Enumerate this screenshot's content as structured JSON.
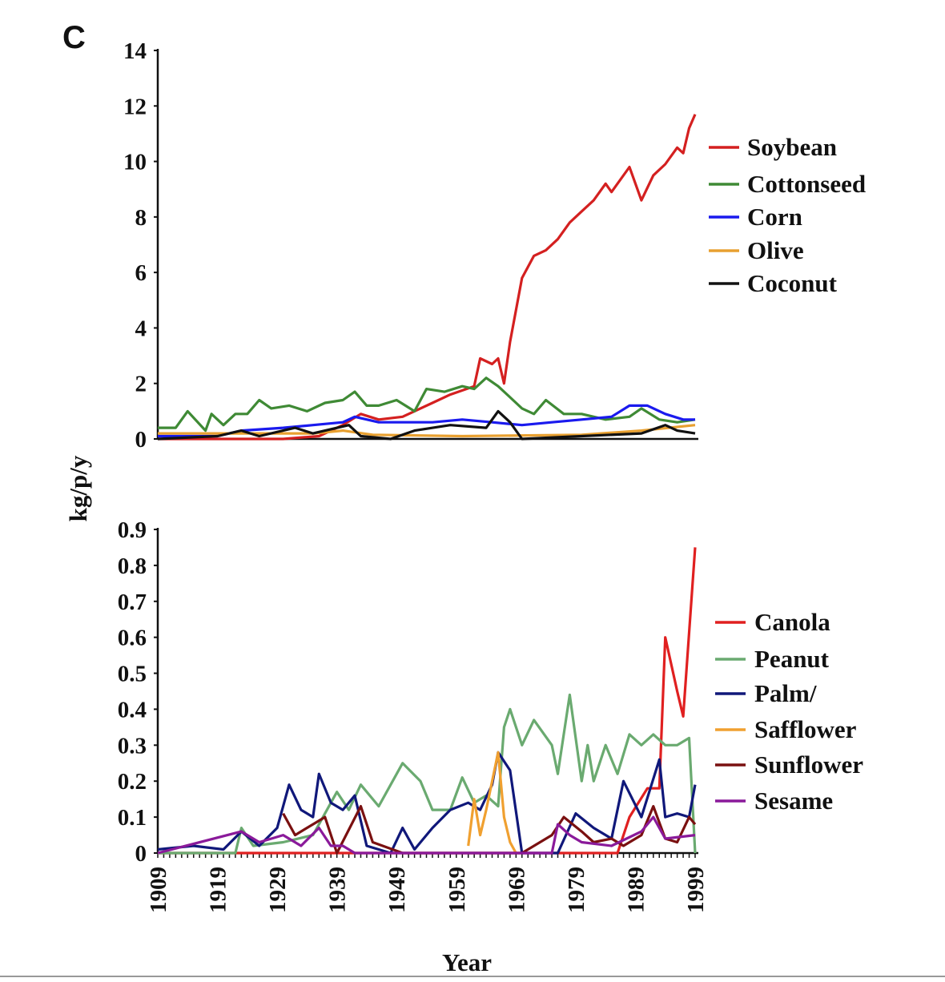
{
  "panel_label": "C",
  "chart_data": [
    {
      "type": "line",
      "title": "",
      "xlabel": "",
      "ylabel": "kg/p/y",
      "xlim": [
        1909,
        1999
      ],
      "ylim": [
        0,
        14
      ],
      "yticks": [
        "0",
        "2",
        "4",
        "6",
        "8",
        "10",
        "12",
        "14"
      ],
      "legend_position": "right",
      "series": [
        {
          "name": "Soybean",
          "color": "#d42020",
          "points": [
            [
              1909,
              0
            ],
            [
              1930,
              0
            ],
            [
              1936,
              0.1
            ],
            [
              1940,
              0.5
            ],
            [
              1943,
              0.9
            ],
            [
              1946,
              0.7
            ],
            [
              1950,
              0.8
            ],
            [
              1955,
              1.3
            ],
            [
              1958,
              1.6
            ],
            [
              1962,
              1.9
            ],
            [
              1963,
              2.9
            ],
            [
              1965,
              2.7
            ],
            [
              1966,
              2.9
            ],
            [
              1967,
              2.0
            ],
            [
              1968,
              3.5
            ],
            [
              1970,
              5.8
            ],
            [
              1972,
              6.6
            ],
            [
              1974,
              6.8
            ],
            [
              1976,
              7.2
            ],
            [
              1978,
              7.8
            ],
            [
              1980,
              8.2
            ],
            [
              1982,
              8.6
            ],
            [
              1984,
              9.2
            ],
            [
              1985,
              8.9
            ],
            [
              1988,
              9.8
            ],
            [
              1990,
              8.6
            ],
            [
              1992,
              9.5
            ],
            [
              1994,
              9.9
            ],
            [
              1996,
              10.5
            ],
            [
              1997,
              10.3
            ],
            [
              1998,
              11.2
            ],
            [
              1999,
              11.7
            ]
          ]
        },
        {
          "name": "Cottonseed",
          "color": "#3f8a35",
          "points": [
            [
              1909,
              0.4
            ],
            [
              1912,
              0.4
            ],
            [
              1914,
              1.0
            ],
            [
              1917,
              0.3
            ],
            [
              1918,
              0.9
            ],
            [
              1920,
              0.5
            ],
            [
              1922,
              0.9
            ],
            [
              1924,
              0.9
            ],
            [
              1926,
              1.4
            ],
            [
              1928,
              1.1
            ],
            [
              1931,
              1.2
            ],
            [
              1934,
              1.0
            ],
            [
              1937,
              1.3
            ],
            [
              1940,
              1.4
            ],
            [
              1942,
              1.7
            ],
            [
              1944,
              1.2
            ],
            [
              1946,
              1.2
            ],
            [
              1949,
              1.4
            ],
            [
              1952,
              1.0
            ],
            [
              1954,
              1.8
            ],
            [
              1957,
              1.7
            ],
            [
              1960,
              1.9
            ],
            [
              1962,
              1.8
            ],
            [
              1964,
              2.2
            ],
            [
              1966,
              1.9
            ],
            [
              1968,
              1.5
            ],
            [
              1970,
              1.1
            ],
            [
              1972,
              0.9
            ],
            [
              1974,
              1.4
            ],
            [
              1977,
              0.9
            ],
            [
              1980,
              0.9
            ],
            [
              1984,
              0.7
            ],
            [
              1988,
              0.8
            ],
            [
              1990,
              1.1
            ],
            [
              1993,
              0.7
            ],
            [
              1996,
              0.6
            ],
            [
              1999,
              0.7
            ]
          ]
        },
        {
          "name": "Corn",
          "color": "#1a1aee",
          "points": [
            [
              1909,
              0.1
            ],
            [
              1919,
              0.1
            ],
            [
              1923,
              0.3
            ],
            [
              1930,
              0.4
            ],
            [
              1935,
              0.5
            ],
            [
              1940,
              0.6
            ],
            [
              1942,
              0.8
            ],
            [
              1946,
              0.6
            ],
            [
              1950,
              0.6
            ],
            [
              1955,
              0.6
            ],
            [
              1960,
              0.7
            ],
            [
              1965,
              0.6
            ],
            [
              1970,
              0.5
            ],
            [
              1975,
              0.6
            ],
            [
              1980,
              0.7
            ],
            [
              1985,
              0.8
            ],
            [
              1988,
              1.2
            ],
            [
              1991,
              1.2
            ],
            [
              1994,
              0.9
            ],
            [
              1997,
              0.7
            ],
            [
              1999,
              0.7
            ]
          ]
        },
        {
          "name": "Olive",
          "color": "#e8a030",
          "points": [
            [
              1909,
              0.2
            ],
            [
              1920,
              0.2
            ],
            [
              1935,
              0.2
            ],
            [
              1940,
              0.3
            ],
            [
              1945,
              0.15
            ],
            [
              1960,
              0.1
            ],
            [
              1980,
              0.15
            ],
            [
              1990,
              0.3
            ],
            [
              1999,
              0.5
            ]
          ]
        },
        {
          "name": "Coconut",
          "color": "#111111",
          "points": [
            [
              1909,
              0
            ],
            [
              1919,
              0.1
            ],
            [
              1923,
              0.3
            ],
            [
              1926,
              0.1
            ],
            [
              1932,
              0.4
            ],
            [
              1935,
              0.2
            ],
            [
              1941,
              0.5
            ],
            [
              1943,
              0.1
            ],
            [
              1948,
              0.0
            ],
            [
              1952,
              0.3
            ],
            [
              1958,
              0.5
            ],
            [
              1964,
              0.4
            ],
            [
              1966,
              1.0
            ],
            [
              1968,
              0.6
            ],
            [
              1970,
              0
            ],
            [
              1980,
              0.1
            ],
            [
              1990,
              0.2
            ],
            [
              1994,
              0.5
            ],
            [
              1996,
              0.3
            ],
            [
              1999,
              0.2
            ]
          ]
        }
      ]
    },
    {
      "type": "line",
      "title": "",
      "xlabel": "Year",
      "ylabel": "kg/p/y",
      "xlim": [
        1909,
        1999
      ],
      "ylim": [
        0,
        0.9
      ],
      "yticks": [
        "0",
        "0.1",
        "0.2",
        "0.3",
        "0.4",
        "0.5",
        "0.6",
        "0.7",
        "0.8",
        "0.9"
      ],
      "xticks": [
        "1909",
        "1919",
        "1929",
        "1939",
        "1949",
        "1959",
        "1969",
        "1979",
        "1989",
        "1999"
      ],
      "legend_position": "right",
      "series": [
        {
          "name": "Canola",
          "color": "#e02020",
          "points": [
            [
              1909,
              0
            ],
            [
              1986,
              0
            ],
            [
              1988,
              0.1
            ],
            [
              1991,
              0.18
            ],
            [
              1993,
              0.18
            ],
            [
              1994,
              0.6
            ],
            [
              1996,
              0.45
            ],
            [
              1997,
              0.38
            ],
            [
              1999,
              0.85
            ]
          ]
        },
        {
          "name": "Peanut",
          "color": "#6aaa70",
          "points": [
            [
              1909,
              0
            ],
            [
              1922,
              0
            ],
            [
              1923,
              0.07
            ],
            [
              1925,
              0.02
            ],
            [
              1930,
              0.03
            ],
            [
              1935,
              0.05
            ],
            [
              1939,
              0.17
            ],
            [
              1941,
              0.12
            ],
            [
              1943,
              0.19
            ],
            [
              1946,
              0.13
            ],
            [
              1950,
              0.25
            ],
            [
              1953,
              0.2
            ],
            [
              1955,
              0.12
            ],
            [
              1958,
              0.12
            ],
            [
              1960,
              0.21
            ],
            [
              1962,
              0.14
            ],
            [
              1964,
              0.16
            ],
            [
              1966,
              0.13
            ],
            [
              1967,
              0.35
            ],
            [
              1968,
              0.4
            ],
            [
              1970,
              0.3
            ],
            [
              1972,
              0.37
            ],
            [
              1975,
              0.3
            ],
            [
              1976,
              0.22
            ],
            [
              1978,
              0.44
            ],
            [
              1980,
              0.2
            ],
            [
              1981,
              0.3
            ],
            [
              1982,
              0.2
            ],
            [
              1984,
              0.3
            ],
            [
              1986,
              0.22
            ],
            [
              1988,
              0.33
            ],
            [
              1990,
              0.3
            ],
            [
              1992,
              0.33
            ],
            [
              1994,
              0.3
            ],
            [
              1996,
              0.3
            ],
            [
              1998,
              0.32
            ],
            [
              1999,
              0
            ]
          ]
        },
        {
          "name": "Palm/",
          "color": "#10187a",
          "points": [
            [
              1909,
              0.01
            ],
            [
              1915,
              0.02
            ],
            [
              1920,
              0.01
            ],
            [
              1923,
              0.06
            ],
            [
              1926,
              0.02
            ],
            [
              1929,
              0.07
            ],
            [
              1931,
              0.19
            ],
            [
              1933,
              0.12
            ],
            [
              1935,
              0.1
            ],
            [
              1936,
              0.22
            ],
            [
              1938,
              0.14
            ],
            [
              1940,
              0.12
            ],
            [
              1942,
              0.16
            ],
            [
              1944,
              0.02
            ],
            [
              1946,
              0.01
            ],
            [
              1948,
              0.0
            ],
            [
              1950,
              0.07
            ],
            [
              1952,
              0.01
            ],
            [
              1955,
              0.07
            ],
            [
              1958,
              0.12
            ],
            [
              1961,
              0.14
            ],
            [
              1963,
              0.12
            ],
            [
              1965,
              0.19
            ],
            [
              1966,
              0.28
            ],
            [
              1968,
              0.23
            ],
            [
              1970,
              0.0
            ],
            [
              1976,
              0.0
            ],
            [
              1979,
              0.11
            ],
            [
              1982,
              0.07
            ],
            [
              1985,
              0.04
            ],
            [
              1987,
              0.2
            ],
            [
              1990,
              0.1
            ],
            [
              1993,
              0.26
            ],
            [
              1994,
              0.1
            ],
            [
              1996,
              0.11
            ],
            [
              1998,
              0.1
            ],
            [
              1999,
              0.19
            ]
          ]
        },
        {
          "name": "Safflower",
          "color": "#f0a030",
          "points": [
            [
              1961,
              0.02
            ],
            [
              1962,
              0.15
            ],
            [
              1963,
              0.05
            ],
            [
              1964,
              0.12
            ],
            [
              1966,
              0.28
            ],
            [
              1967,
              0.1
            ],
            [
              1968,
              0.03
            ],
            [
              1969,
              0.0
            ]
          ]
        },
        {
          "name": "Sunflower",
          "color": "#7a1010",
          "points": [
            [
              1930,
              0.11
            ],
            [
              1932,
              0.05
            ],
            [
              1935,
              0.08
            ],
            [
              1937,
              0.1
            ],
            [
              1939,
              0.0
            ],
            [
              1943,
              0.13
            ],
            [
              1945,
              0.03
            ],
            [
              1950,
              0
            ],
            [
              1970,
              0.0
            ],
            [
              1975,
              0.05
            ],
            [
              1977,
              0.1
            ],
            [
              1980,
              0.06
            ],
            [
              1982,
              0.03
            ],
            [
              1985,
              0.04
            ],
            [
              1987,
              0.02
            ],
            [
              1990,
              0.05
            ],
            [
              1992,
              0.13
            ],
            [
              1994,
              0.04
            ],
            [
              1996,
              0.03
            ],
            [
              1998,
              0.1
            ],
            [
              1999,
              0.08
            ]
          ]
        },
        {
          "name": "Sesame",
          "color": "#8a1a9a",
          "points": [
            [
              1909,
              0
            ],
            [
              1923,
              0.06
            ],
            [
              1926,
              0.03
            ],
            [
              1930,
              0.05
            ],
            [
              1933,
              0.02
            ],
            [
              1936,
              0.07
            ],
            [
              1938,
              0.02
            ],
            [
              1940,
              0.02
            ],
            [
              1942,
              0
            ],
            [
              1975,
              0
            ],
            [
              1976,
              0.08
            ],
            [
              1978,
              0.05
            ],
            [
              1980,
              0.03
            ],
            [
              1985,
              0.02
            ],
            [
              1990,
              0.06
            ],
            [
              1992,
              0.1
            ],
            [
              1994,
              0.04
            ],
            [
              1999,
              0.05
            ]
          ]
        }
      ]
    }
  ]
}
